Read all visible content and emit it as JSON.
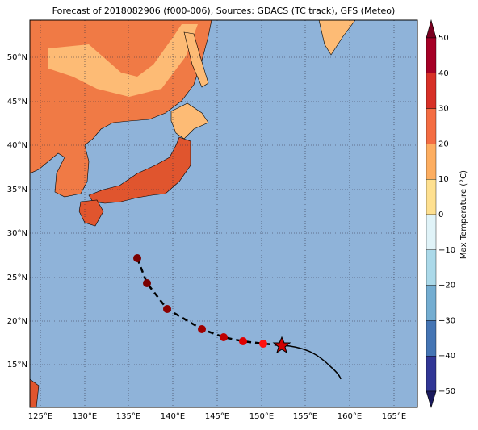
{
  "title": "Forecast of 2018082906 (f000-006), Sources: GDACS (TC track), GFS (Meteo)",
  "x_labels": [
    "125°E",
    "130°E",
    "135°E",
    "140°E",
    "145°E",
    "150°E",
    "155°E",
    "160°E",
    "165°E"
  ],
  "y_labels": [
    "50°N",
    "45°N",
    "40°N",
    "35°N",
    "30°N",
    "25°N",
    "20°N",
    "15°N"
  ],
  "colorbar": {
    "label": "Max Temperature (°C)",
    "tick_labels": [
      "50",
      "40",
      "30",
      "20",
      "10",
      "0",
      "−10",
      "−20",
      "−30",
      "−40",
      "−50"
    ]
  }
}
